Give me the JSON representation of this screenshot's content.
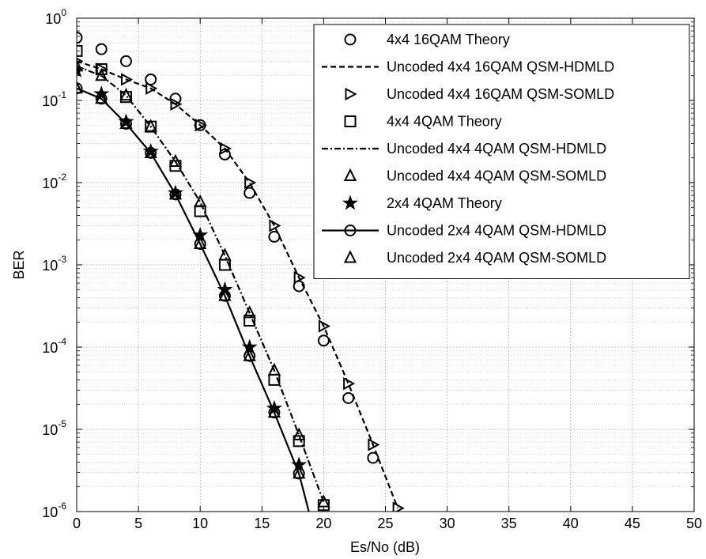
{
  "chart_data": {
    "type": "line",
    "xlabel": "Es/No (dB)",
    "ylabel": "BER",
    "xlim": [
      0,
      50
    ],
    "ylim": [
      1e-06,
      1
    ],
    "yscale": "log",
    "grid": true,
    "legend_position": "top-right",
    "x_ticks": [
      "0",
      "5",
      "10",
      "15",
      "20",
      "25",
      "30",
      "35",
      "40",
      "45",
      "50"
    ],
    "y_ticks": [
      {
        "base": "10",
        "exp": "0"
      },
      {
        "base": "10",
        "exp": "-1"
      },
      {
        "base": "10",
        "exp": "-2"
      },
      {
        "base": "10",
        "exp": "-3"
      },
      {
        "base": "10",
        "exp": "-4"
      },
      {
        "base": "10",
        "exp": "-5"
      },
      {
        "base": "10",
        "exp": "-6"
      }
    ],
    "series": [
      {
        "name": "4x4 16QAM Theory",
        "marker": "circle",
        "line": "none",
        "x": [
          0,
          2,
          4,
          6,
          8,
          10,
          12,
          14,
          16,
          18,
          20,
          22,
          24
        ],
        "y": [
          0.58,
          0.42,
          0.3,
          0.18,
          0.105,
          0.05,
          0.022,
          0.0075,
          0.0022,
          0.00055,
          0.00012,
          2.4e-05,
          4.5e-06
        ]
      },
      {
        "name": "Uncoded 4x4 16QAM QSM-HDMLD",
        "marker": "none",
        "line": "dashed",
        "x": [
          0,
          2,
          4,
          6,
          8,
          10,
          12,
          14,
          16,
          18,
          20,
          22,
          24,
          26
        ],
        "y": [
          0.3,
          0.24,
          0.18,
          0.14,
          0.09,
          0.05,
          0.026,
          0.01,
          0.003,
          0.0007,
          0.00018,
          3.6e-05,
          6.5e-06,
          1.1e-06
        ]
      },
      {
        "name": "Uncoded 4x4 16QAM QSM-SOMLD",
        "marker": "triangle-right",
        "line": "none",
        "x": [
          0,
          2,
          4,
          6,
          8,
          10,
          12,
          14,
          16,
          18,
          20,
          22,
          24,
          26
        ],
        "y": [
          0.3,
          0.24,
          0.18,
          0.14,
          0.09,
          0.05,
          0.026,
          0.01,
          0.003,
          0.0007,
          0.00018,
          3.6e-05,
          6.5e-06,
          1.1e-06
        ]
      },
      {
        "name": "4x4 4QAM Theory",
        "marker": "square",
        "line": "none",
        "x": [
          0,
          2,
          4,
          6,
          8,
          10,
          12,
          14,
          16,
          18,
          20
        ],
        "y": [
          0.4,
          0.24,
          0.11,
          0.048,
          0.016,
          0.0045,
          0.001,
          0.00021,
          4e-05,
          7.2e-06,
          1.2e-06
        ]
      },
      {
        "name": "Uncoded 4x4 4QAM QSM-HDMLD",
        "marker": "none",
        "line": "dashdot",
        "x": [
          0,
          2,
          4,
          6,
          8,
          10,
          12,
          14,
          16,
          18,
          20
        ],
        "y": [
          0.26,
          0.2,
          0.115,
          0.048,
          0.018,
          0.0058,
          0.0013,
          0.00026,
          5.2e-05,
          8.5e-06,
          1.3e-06
        ]
      },
      {
        "name": "Uncoded 4x4 4QAM QSM-SOMLD",
        "marker": "triangle-up",
        "line": "none",
        "x": [
          0,
          2,
          4,
          6,
          8,
          10,
          12,
          14,
          16,
          18,
          20
        ],
        "y": [
          0.26,
          0.2,
          0.115,
          0.048,
          0.018,
          0.0058,
          0.0013,
          0.00026,
          5.2e-05,
          8.5e-06,
          1.3e-06
        ]
      },
      {
        "name": "2x4 4QAM Theory",
        "marker": "star",
        "line": "none",
        "x": [
          0,
          2,
          4,
          6,
          8,
          10,
          12,
          14,
          16,
          18
        ],
        "y": [
          0.23,
          0.12,
          0.055,
          0.024,
          0.0075,
          0.0023,
          0.0005,
          0.0001,
          1.8e-05,
          3.7e-06
        ]
      },
      {
        "name": "Uncoded 2x4 4QAM QSM-HDMLD",
        "marker": "circle",
        "line": "solid",
        "x": [
          0,
          2,
          4,
          6,
          8,
          10,
          12,
          14,
          16,
          18,
          18.8
        ],
        "y": [
          0.14,
          0.105,
          0.052,
          0.023,
          0.0072,
          0.0018,
          0.00042,
          7.8e-05,
          1.6e-05,
          2.9e-06,
          1e-06
        ]
      },
      {
        "name": "Uncoded 2x4 4QAM QSM-SOMLD",
        "marker": "triangle-up",
        "line": "none",
        "x": [
          0,
          2,
          4,
          6,
          8,
          10,
          12,
          14,
          16,
          18
        ],
        "y": [
          0.14,
          0.105,
          0.052,
          0.023,
          0.0072,
          0.0018,
          0.00042,
          7.8e-05,
          1.6e-05,
          2.9e-06
        ]
      }
    ]
  }
}
